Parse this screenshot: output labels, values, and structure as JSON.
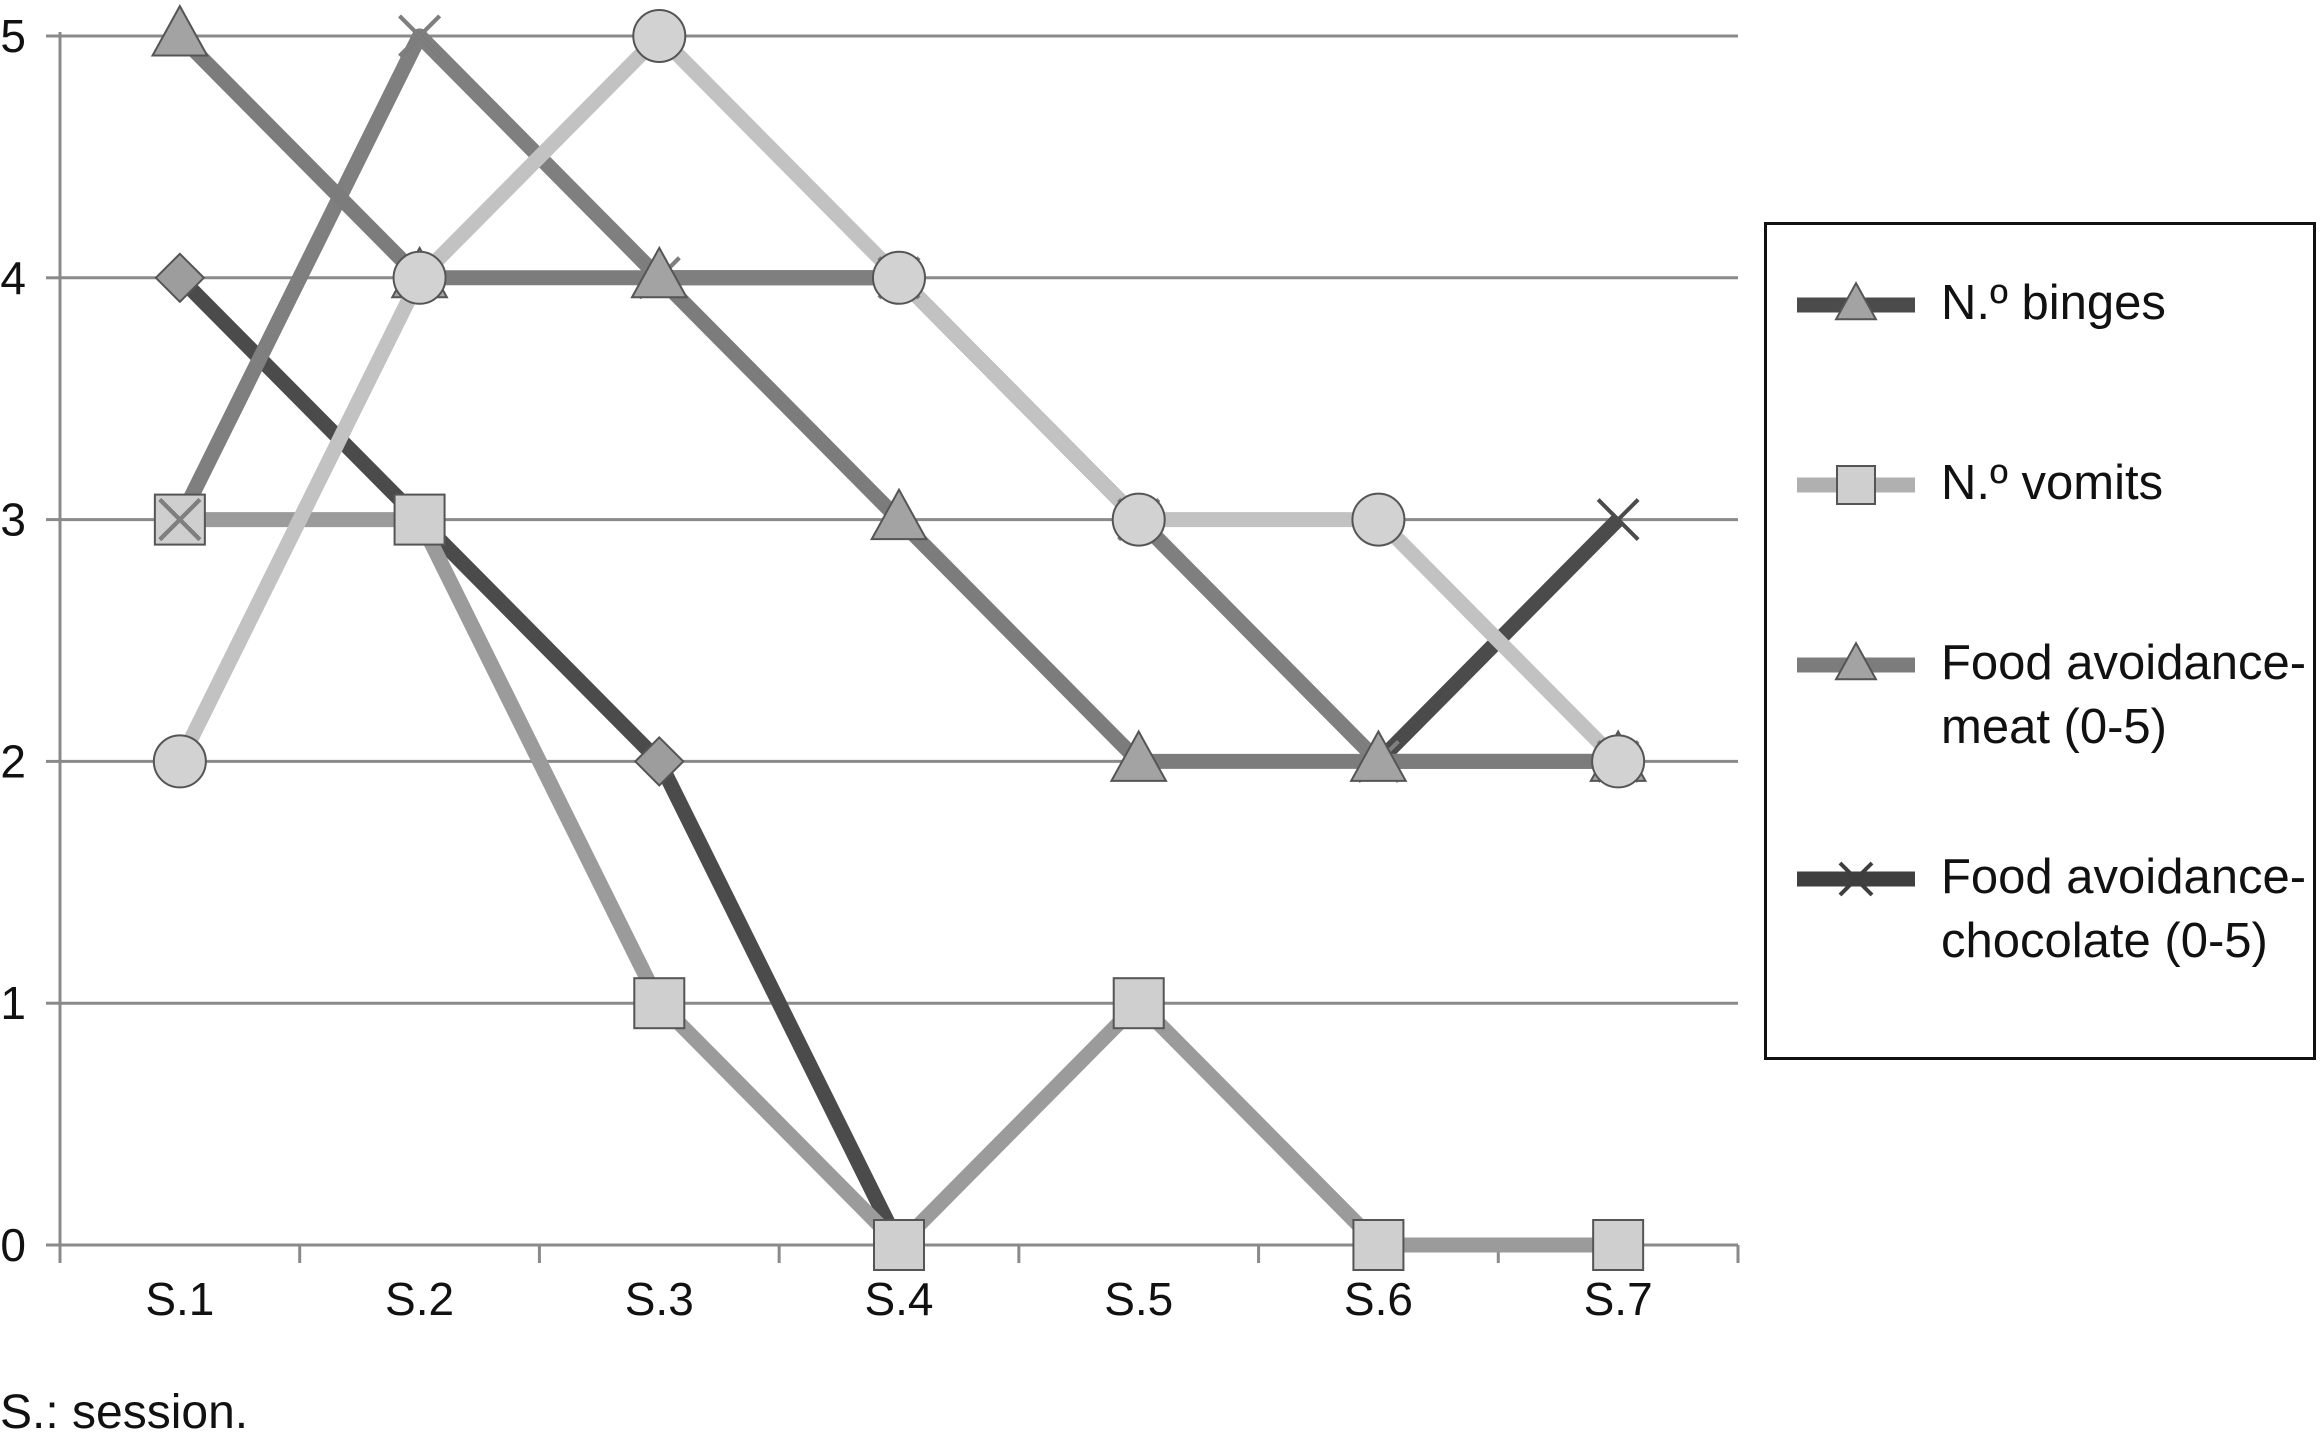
{
  "chart_data": {
    "type": "line",
    "categories": [
      "S.1",
      "S.2",
      "S.3",
      "S.4",
      "S.5",
      "S.6",
      "S.7"
    ],
    "ylim": [
      0,
      5
    ],
    "yticks": [
      0,
      1,
      2,
      3,
      4,
      5
    ],
    "grid": true,
    "legend_position": "right",
    "series": [
      {
        "name": "N.º binges",
        "values": [
          4,
          3,
          2,
          0,
          null,
          null,
          null
        ],
        "color": "#4b4b4b",
        "marker": "diamond"
      },
      {
        "name": "N.º vomits",
        "values": [
          3,
          3,
          1,
          0,
          1,
          0,
          0
        ],
        "color": "#9b9b9b",
        "marker": "square"
      },
      {
        "name": "Food avoidance-meat (0-5)",
        "values": [
          5,
          4,
          4,
          3,
          2,
          2,
          2
        ],
        "color": "#7c7c7c",
        "marker": "triangle"
      },
      {
        "name": "Food avoidance-chocolate (0-5)",
        "values": [
          3,
          5,
          4,
          4,
          3,
          2,
          3
        ],
        "color": "#4b4b4b",
        "marker": "x"
      },
      {
        "name": "",
        "values": [
          3,
          5,
          4,
          4,
          3,
          2,
          2
        ],
        "color": "#7f7f7f",
        "marker": "x"
      },
      {
        "name": "",
        "values": [
          2,
          4,
          5,
          4,
          3,
          3,
          2
        ],
        "color": "#c2c2c2",
        "marker": "circle"
      }
    ],
    "legend": [
      {
        "label": "N.º binges",
        "color": "#4b4b4b",
        "marker": "triangle"
      },
      {
        "label": "N.º vomits",
        "color": "#b0b0b0",
        "marker": "square"
      },
      {
        "label": "Food avoidance-meat (0-5)",
        "color": "#7c7c7c",
        "marker": "triangle"
      },
      {
        "label": "Food avoidance-chocolate (0-5)",
        "color": "#3f3f3f",
        "marker": "x"
      }
    ],
    "footnote": "S.: session."
  }
}
